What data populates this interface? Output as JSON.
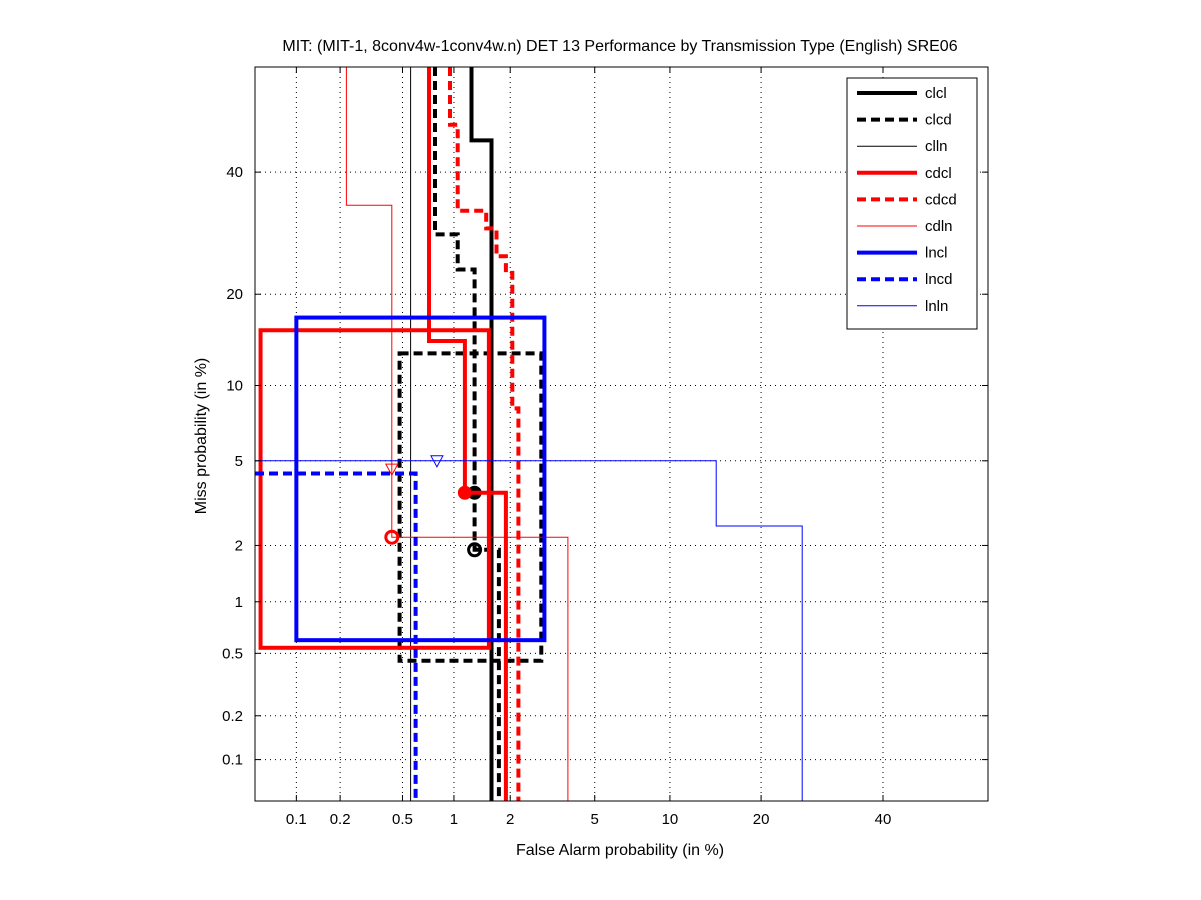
{
  "chart_data": {
    "type": "line",
    "title": "MIT: (MIT-1, 8conv4w-1conv4w.n) DET 13 Performance by Transmission Type (English) SRE06",
    "xlabel": "False Alarm probability (in %)",
    "ylabel": "Miss probability (in %)",
    "scale": "normal-deviate (probit) on both axes",
    "xlim": [
      0.05,
      60
    ],
    "ylim": [
      0.05,
      60
    ],
    "grid": true,
    "legend_position": "top-right",
    "x_ticks": [
      0.1,
      0.2,
      0.5,
      1,
      2,
      5,
      10,
      20,
      40
    ],
    "x_tick_labels": [
      "0.1",
      "0.2",
      "0.5",
      "1",
      "2",
      "5",
      "10",
      "20",
      "40"
    ],
    "y_ticks": [
      0.1,
      0.2,
      0.5,
      1,
      2,
      5,
      10,
      20,
      40
    ],
    "y_tick_labels": [
      "0.1",
      "0.2",
      "0.5",
      "1",
      "2",
      "5",
      "10",
      "20",
      "40"
    ],
    "colors": {
      "black": "#000000",
      "red": "#ff0000",
      "blue": "#0000ff"
    },
    "series": [
      {
        "name": "clcl",
        "color": "#000000",
        "style": "solid",
        "weight": "thick",
        "points": [
          [
            1.25,
            60
          ],
          [
            1.25,
            46
          ],
          [
            1.6,
            46
          ],
          [
            1.6,
            0.05
          ]
        ],
        "marker": {
          "type": "circle-filled",
          "x": 1.3,
          "y": 3.6
        }
      },
      {
        "name": "clcd",
        "color": "#000000",
        "style": "dashed",
        "weight": "thick",
        "points": [
          [
            0.78,
            60
          ],
          [
            0.78,
            29
          ],
          [
            1.05,
            29
          ],
          [
            1.05,
            23.5
          ],
          [
            1.3,
            23.5
          ],
          [
            1.3,
            1.9
          ],
          [
            1.75,
            1.9
          ],
          [
            1.75,
            0.05
          ]
        ],
        "marker": {
          "type": "circle",
          "x": 1.3,
          "y": 1.9
        },
        "box": {
          "x1": 0.48,
          "x2": 2.85,
          "y1": 0.45,
          "y2": 13
        }
      },
      {
        "name": "clln",
        "color": "#000000",
        "style": "solid",
        "weight": "thin",
        "points": [
          [
            0.56,
            60
          ],
          [
            0.56,
            0.05
          ]
        ]
      },
      {
        "name": "cdcl",
        "color": "#ff0000",
        "style": "solid",
        "weight": "thick",
        "points": [
          [
            0.72,
            60
          ],
          [
            0.72,
            14.3
          ],
          [
            1.15,
            14.3
          ],
          [
            1.15,
            3.6
          ],
          [
            1.9,
            3.6
          ],
          [
            1.9,
            0.05
          ]
        ],
        "marker": {
          "type": "circle-filled",
          "x": 1.15,
          "y": 3.6
        },
        "box": {
          "x1": 0.055,
          "x2": 1.55,
          "y1": 0.54,
          "y2": 15.5
        }
      },
      {
        "name": "cdcd",
        "color": "#ff0000",
        "style": "dashed",
        "weight": "thick",
        "points": [
          [
            0.95,
            60
          ],
          [
            0.95,
            49
          ],
          [
            1.05,
            49
          ],
          [
            1.05,
            33
          ],
          [
            1.5,
            33
          ],
          [
            1.5,
            30
          ],
          [
            1.7,
            30
          ],
          [
            1.7,
            25.5
          ],
          [
            1.9,
            25.5
          ],
          [
            1.9,
            23
          ],
          [
            2.05,
            23
          ],
          [
            2.05,
            8.2
          ],
          [
            2.2,
            8.2
          ],
          [
            2.2,
            0.05
          ]
        ]
      },
      {
        "name": "cdln",
        "color": "#ff0000",
        "style": "solid",
        "weight": "thin",
        "points": [
          [
            0.22,
            60
          ],
          [
            0.22,
            34
          ],
          [
            0.43,
            34
          ],
          [
            0.43,
            2.2
          ],
          [
            3.8,
            2.2
          ],
          [
            3.8,
            0.05
          ]
        ],
        "marker": {
          "type": "triangle-down",
          "x": 0.43,
          "y": 4.6
        },
        "marker2": {
          "type": "circle",
          "x": 0.43,
          "y": 2.2
        }
      },
      {
        "name": "lncl",
        "color": "#0000ff",
        "style": "solid",
        "weight": "thick",
        "points": [],
        "box": {
          "x1": 0.1,
          "x2": 2.95,
          "y1": 0.6,
          "y2": 17
        }
      },
      {
        "name": "lncd",
        "color": "#0000ff",
        "style": "dashed",
        "weight": "thick",
        "points": [
          [
            0.05,
            4.4
          ],
          [
            0.6,
            4.4
          ],
          [
            0.6,
            0.05
          ]
        ]
      },
      {
        "name": "lnln",
        "color": "#0000ff",
        "style": "solid",
        "weight": "thin",
        "points": [
          [
            0.05,
            5.0
          ],
          [
            14.5,
            5.0
          ],
          [
            14.5,
            2.5
          ],
          [
            26,
            2.5
          ],
          [
            26,
            0.05
          ]
        ],
        "marker": {
          "type": "triangle-down",
          "x": 0.8,
          "y": 5.0
        }
      }
    ]
  }
}
